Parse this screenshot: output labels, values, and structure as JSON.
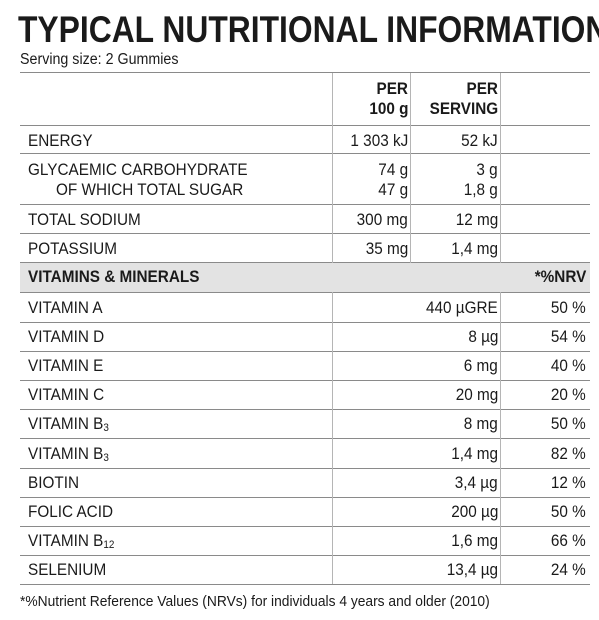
{
  "title": "TYPICAL NUTRITIONAL INFORMATION",
  "serving_size": "Serving size: 2 Gummies",
  "header": {
    "per100_line1": "PER",
    "per100_line2": "100 g",
    "perserving_line1": "PER",
    "perserving_line2": "SERVING"
  },
  "nutrients": [
    {
      "label": "ENERGY",
      "per100": "1 303 kJ",
      "serving": "52 kJ"
    },
    {
      "label": "GLYCAEMIC CARBOHYDRATE",
      "per100": "74 g",
      "serving": "3 g"
    },
    {
      "label": "OF WHICH TOTAL SUGAR",
      "per100": "47 g",
      "serving": "1,8 g"
    },
    {
      "label": "TOTAL SODIUM",
      "per100": "300 mg",
      "serving": "12 mg"
    },
    {
      "label": "POTASSIUM",
      "per100": "35 mg",
      "serving": "1,4 mg"
    }
  ],
  "section": {
    "label": "VITAMINS & MINERALS",
    "nrv_header": "*%NRV"
  },
  "vitamins": [
    {
      "label": "VITAMIN A",
      "sub": "",
      "serving": "440 µGRE",
      "nrv": "50 %"
    },
    {
      "label": "VITAMIN D",
      "sub": "",
      "serving": "8 µg",
      "nrv": "54 %"
    },
    {
      "label": "VITAMIN E",
      "sub": "",
      "serving": "6 mg",
      "nrv": "40 %"
    },
    {
      "label": "VITAMIN C",
      "sub": "",
      "serving": "20 mg",
      "nrv": "20 %"
    },
    {
      "label": "VITAMIN B",
      "sub": "3",
      "serving": "8 mg",
      "nrv": "50 %"
    },
    {
      "label": "VITAMIN B",
      "sub": "3",
      "serving": "1,4 mg",
      "nrv": "82 %"
    },
    {
      "label": "BIOTIN",
      "sub": "",
      "serving": "3,4 µg",
      "nrv": "12 %"
    },
    {
      "label": "FOLIC ACID",
      "sub": "",
      "serving": "200 µg",
      "nrv": "50 %"
    },
    {
      "label": "VITAMIN B",
      "sub": "12",
      "serving": "1,6 mg",
      "nrv": "66 %"
    },
    {
      "label": "SELENIUM",
      "sub": "",
      "serving": "13,4 µg",
      "nrv": "24 %"
    }
  ],
  "footnote": "*%Nutrient Reference Values (NRVs) for individuals 4 years and older (2010)"
}
